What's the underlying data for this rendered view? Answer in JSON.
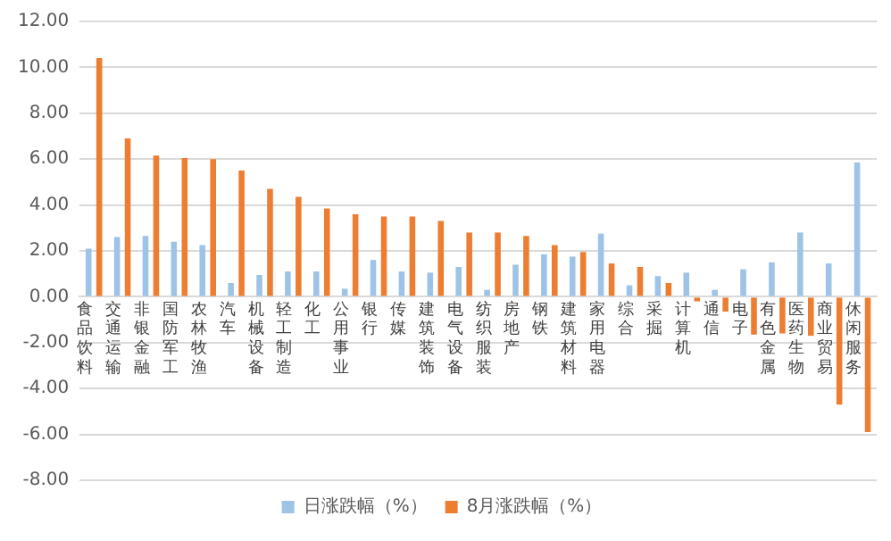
{
  "chart_data": {
    "type": "bar",
    "categories": [
      "食品饮料",
      "交通运输",
      "非银金融",
      "国防军工",
      "农林牧渔",
      "汽车",
      "机械设备",
      "轻工制造",
      "化工",
      "公用事业",
      "银行",
      "传媒",
      "建筑装饰",
      "电气设备",
      "纺织服装",
      "房地产",
      "钢铁",
      "建筑材料",
      "家用电器",
      "综合",
      "采掘",
      "计算机",
      "通信",
      "电子",
      "有色金属",
      "医药生物",
      "商业贸易",
      "休闲服务"
    ],
    "series": [
      {
        "name": "日涨跌幅（%）",
        "color": "#9dc3e6",
        "values": [
          2.1,
          2.6,
          2.65,
          2.4,
          2.25,
          0.6,
          0.95,
          1.1,
          1.1,
          0.35,
          1.6,
          1.1,
          1.05,
          1.3,
          0.3,
          1.4,
          1.85,
          1.75,
          2.75,
          0.5,
          0.9,
          1.05,
          0.3,
          1.2,
          1.5,
          2.8,
          1.45,
          5.85
        ]
      },
      {
        "name": "8月涨跌幅（%）",
        "color": "#ed7d31",
        "values": [
          10.4,
          6.9,
          6.15,
          6.05,
          6.0,
          5.5,
          4.7,
          4.35,
          3.85,
          3.6,
          3.5,
          3.5,
          3.3,
          2.8,
          2.8,
          2.65,
          2.25,
          1.95,
          1.45,
          1.3,
          0.6,
          -0.2,
          -0.65,
          -1.65,
          -1.6,
          -1.7,
          -4.7,
          -5.9
        ]
      }
    ],
    "ylim": [
      -8,
      12
    ],
    "yticks": [
      {
        "value": -8,
        "label": "-8.00"
      },
      {
        "value": -6,
        "label": "-6.00"
      },
      {
        "value": -4,
        "label": "-4.00"
      },
      {
        "value": -2,
        "label": "-2.00"
      },
      {
        "value": 0,
        "label": "0.00"
      },
      {
        "value": 2,
        "label": "2.00"
      },
      {
        "value": 4,
        "label": "4.00"
      },
      {
        "value": 6,
        "label": "6.00"
      },
      {
        "value": 8,
        "label": "8.00"
      },
      {
        "value": 10,
        "label": "10.00"
      },
      {
        "value": 12,
        "label": "12.00"
      }
    ],
    "grid": "y",
    "legend": "bottom"
  }
}
